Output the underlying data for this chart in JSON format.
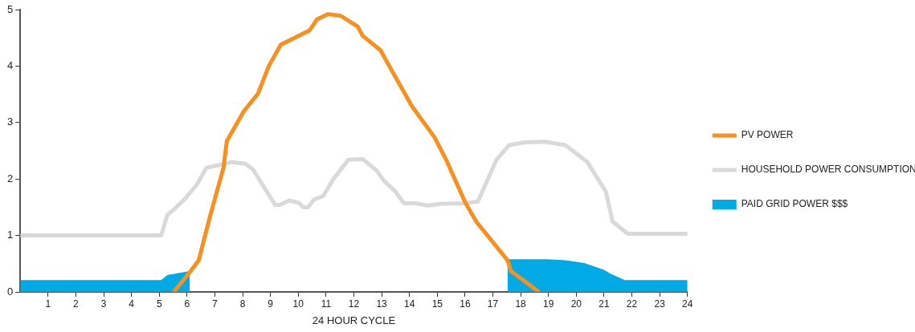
{
  "chart_data": {
    "type": "line",
    "xlabel": "24 HOUR CYCLE",
    "xlim": [
      0,
      24
    ],
    "xticks": [
      1,
      2,
      3,
      4,
      5,
      6,
      7,
      8,
      9,
      10,
      11,
      12,
      13,
      14,
      15,
      16,
      17,
      18,
      19,
      20,
      21,
      22,
      23,
      24
    ],
    "ylim": [
      0,
      5
    ],
    "yticks": [
      0,
      1,
      2,
      3,
      4,
      5
    ],
    "grid": false,
    "legend": "right",
    "marker": "none",
    "series": [
      {
        "name": "PV POWER",
        "color": "#f7901e",
        "type": "line",
        "x": [
          5.52,
          6.13,
          6.42,
          6.81,
          7.31,
          7.43,
          8.04,
          8.55,
          8.94,
          9.37,
          10.4,
          10.68,
          11.07,
          11.53,
          12.14,
          12.31,
          12.96,
          13.32,
          14.1,
          14.9,
          15.34,
          16.0,
          16.41,
          17.53,
          17.65,
          18.66
        ],
        "values": [
          0,
          0.37,
          0.56,
          1.31,
          2.2,
          2.67,
          3.2,
          3.51,
          4.0,
          4.38,
          4.63,
          4.83,
          4.92,
          4.89,
          4.7,
          4.54,
          4.28,
          3.96,
          3.28,
          2.74,
          2.32,
          1.59,
          1.24,
          0.56,
          0.37,
          0
        ]
      },
      {
        "name": "HOUSEHOLD POWER CONSUMPTION",
        "color": "#d9d9d9",
        "type": "line",
        "x": [
          0,
          5.07,
          5.29,
          5.5,
          5.91,
          6.35,
          6.7,
          7.37,
          7.6,
          8.1,
          8.37,
          9.17,
          9.33,
          9.67,
          10.01,
          10.18,
          10.35,
          10.57,
          10.9,
          11.24,
          11.58,
          11.8,
          12.32,
          12.82,
          13.08,
          13.49,
          13.8,
          14.22,
          14.67,
          15.1,
          16.0,
          16.46,
          17.13,
          17.59,
          18.14,
          18.88,
          19.61,
          20.4,
          21.07,
          21.3,
          21.85,
          24
        ],
        "values": [
          1.0,
          1.0,
          1.36,
          1.45,
          1.64,
          1.9,
          2.2,
          2.27,
          2.3,
          2.27,
          2.17,
          1.54,
          1.54,
          1.62,
          1.58,
          1.5,
          1.5,
          1.64,
          1.7,
          1.98,
          2.2,
          2.34,
          2.35,
          2.15,
          1.97,
          1.78,
          1.57,
          1.57,
          1.53,
          1.56,
          1.57,
          1.6,
          2.34,
          2.6,
          2.65,
          2.66,
          2.6,
          2.3,
          1.77,
          1.25,
          1.03,
          1.03
        ]
      },
      {
        "name": "PAID GRID POWER $$$",
        "color": "#00aae4",
        "type": "area",
        "x": [
          0,
          5.07,
          5.29,
          6.1,
          null,
          17.53,
          18.94,
          19.61,
          20.29,
          21.0,
          21.24,
          21.75,
          24
        ],
        "values": [
          0.21,
          0.21,
          0.3,
          0.37,
          null,
          0.58,
          0.58,
          0.56,
          0.51,
          0.39,
          0.32,
          0.21,
          0.21
        ]
      }
    ]
  }
}
